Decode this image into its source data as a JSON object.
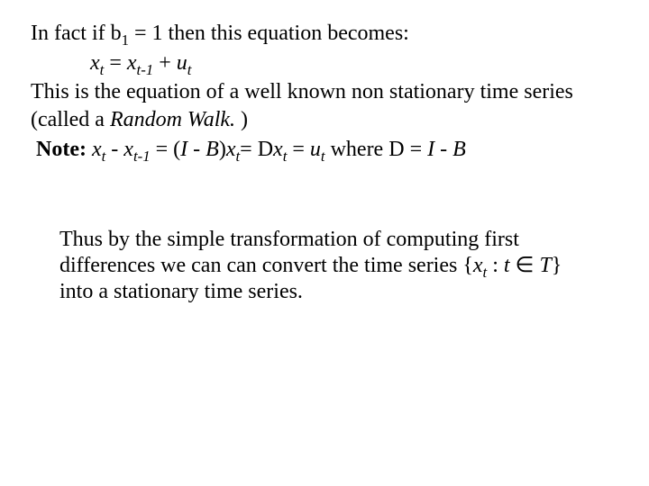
{
  "colors": {
    "text": "#000000",
    "background": "#ffffff"
  },
  "typography": {
    "font_family": "Times New Roman",
    "base_size_pt": 24,
    "line_height": 1.28
  },
  "p1": {
    "pre": "In fact if ",
    "beta": "b",
    "beta_sub": "1",
    "mid": " = 1  then this equation becomes:"
  },
  "eq1": {
    "x": "x",
    "t": "t",
    "eq": " = ",
    "x2": "x",
    "tm1": "t-1",
    "plus": " +  ",
    "u": "u",
    "t2": "t"
  },
  "p2": {
    "a": "This is the equation of a well known non stationary time series (called a ",
    "rw": "Random Walk.",
    "b": " )"
  },
  "note": {
    "label": "Note:",
    "sp0": " ",
    "x": "x",
    "t": "t",
    "minus": " - ",
    "x2": "x",
    "tm1": "t-1",
    "eq": "  =  (",
    "I": "I",
    "sp1": " - ",
    "B": "B",
    "close": ")",
    "x3": "x",
    "t3": "t",
    "eq2": "= ",
    "delta": "D",
    "x4": "x",
    "t4": "t",
    "eq3": " =  ",
    "u": "u",
    "t5": "t",
    "where": "  where  ",
    "delta2": "D",
    "eqIB": " = ",
    "I2": "I",
    "sp2": " - ",
    "B2": "B"
  },
  "p3": {
    "a": "Thus by the simple transformation of computing first differences we can can convert the time series {",
    "x": "x",
    "t": "t",
    "colon": " : ",
    "tvar": "t",
    "in": " ∈ ",
    "T": "T",
    "b": "} into a stationary time series."
  }
}
